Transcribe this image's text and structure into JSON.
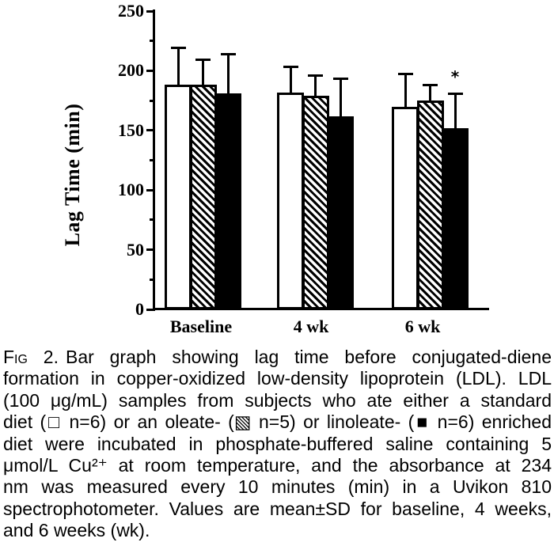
{
  "chart_data": {
    "type": "bar",
    "title": "",
    "ylabel": "Lag Time (min)",
    "xlabel": "",
    "ylim": [
      0,
      250
    ],
    "ytick_interval": 50,
    "ytick_minor_interval": 25,
    "grid": false,
    "legend_position": "in-caption",
    "ink_color": "#000000",
    "paper_color": "#ffffff",
    "categories": [
      "Baseline",
      "4 wk",
      "6 wk"
    ],
    "series": [
      {
        "name": "standard diet (n=6)",
        "fill": "white",
        "values": [
          188,
          182,
          170
        ],
        "sd_upper": [
          31,
          21,
          27
        ]
      },
      {
        "name": "oleate-enriched diet (n=5)",
        "fill": "hatched",
        "values": [
          188,
          179,
          175
        ],
        "sd_upper": [
          21,
          17,
          13
        ]
      },
      {
        "name": "linoleate-enriched diet (n=6)",
        "fill": "black",
        "values": [
          181,
          162,
          152
        ],
        "sd_upper": [
          33,
          31,
          29
        ]
      }
    ],
    "error_bars": "mean±SD, upper only",
    "annotations": [
      {
        "text": "*",
        "category": "6 wk",
        "series": "linoleate-enriched diet (n=6)"
      }
    ]
  },
  "caption": {
    "fig_label": "Fig 2.",
    "lines": [
      "Bar graph showing lag time before conjugated-diene",
      "formation in copper-oxidized low-density lipoprotein (LDL). LDL",
      "(100 μg/mL) samples from subjects who ate either a standard",
      "diet (□ n=6) or an oleate- (▧ n=5) or linoleate- (■ n=6) enriched",
      "diet were incubated in phosphate-buffered saline containing 5",
      "μmol/L Cu²⁺ at room temperature, and the absorbance at 234",
      "nm was measured every 10 minutes (min) in a Uvikon 810",
      "spectrophotometer. Values are mean±SD for baseline, 4 weeks,",
      "and 6 weeks (wk)."
    ]
  }
}
